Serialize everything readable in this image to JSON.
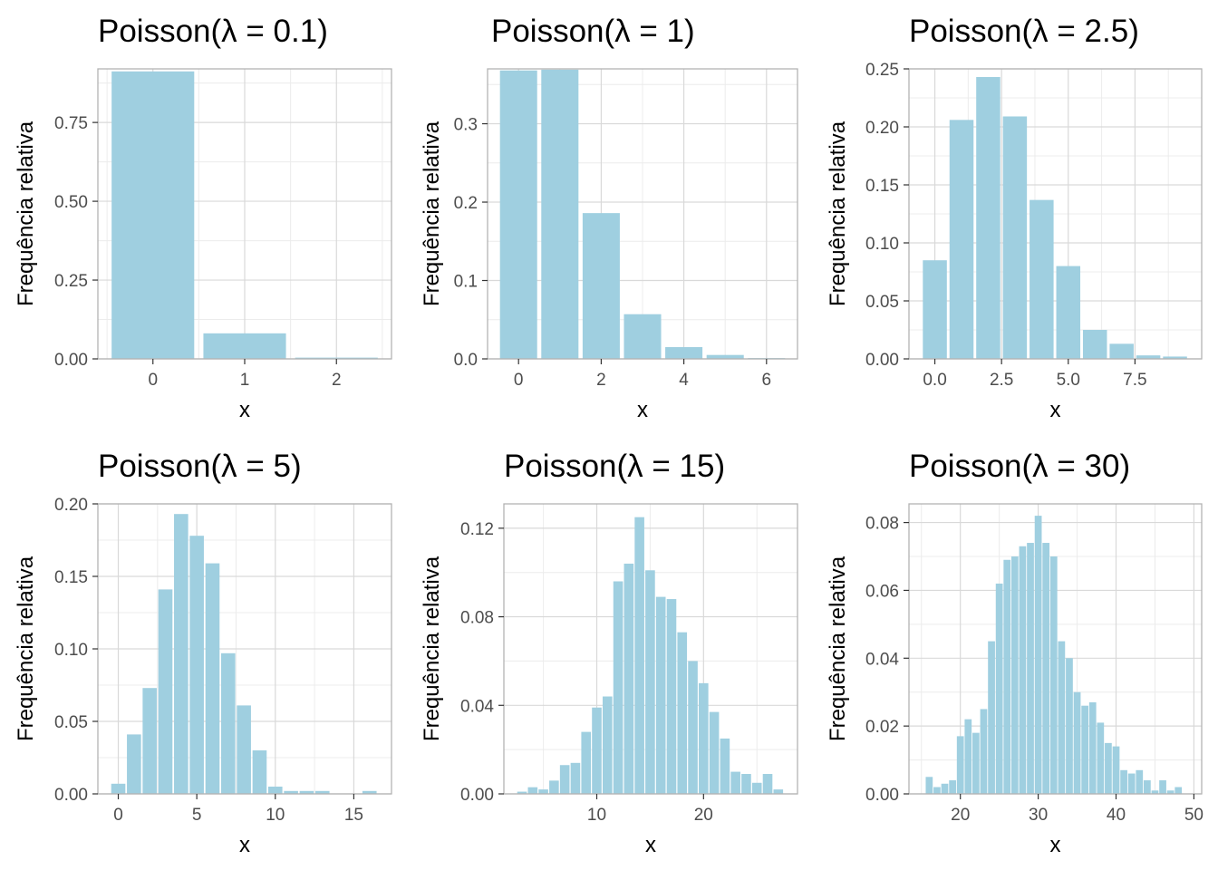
{
  "y_axis_label": "Frequência relativa",
  "x_axis_label": "x",
  "colors": {
    "bar": "#9fcfe0",
    "grid_major": "#d9d9d9",
    "grid_minor": "#ececec",
    "panel_border": "#b3b3b3",
    "tick_text": "#4d4d4d"
  },
  "chart_data": [
    {
      "type": "bar",
      "title": "Poisson(λ = 0.1)",
      "xlabel": "x",
      "ylabel": "Frequência relativa",
      "xlim": [
        -0.6,
        2.6
      ],
      "ylim": [
        0,
        0.92
      ],
      "x_ticks": [
        0,
        1,
        2
      ],
      "x_tick_labels": [
        "0",
        "1",
        "2"
      ],
      "y_ticks": [
        0,
        0.25,
        0.5,
        0.75
      ],
      "y_tick_labels": [
        "0.00",
        "0.25",
        "0.50",
        "0.75"
      ],
      "x": [
        0,
        1,
        2
      ],
      "values": [
        0.912,
        0.081,
        0.004
      ]
    },
    {
      "type": "bar",
      "title": "Poisson(λ = 1)",
      "xlabel": "x",
      "ylabel": "Frequência relativa",
      "xlim": [
        -0.75,
        6.75
      ],
      "ylim": [
        0,
        0.37
      ],
      "x_ticks": [
        0,
        2,
        4,
        6
      ],
      "x_tick_labels": [
        "0",
        "2",
        "4",
        "6"
      ],
      "y_ticks": [
        0,
        0.1,
        0.2,
        0.3
      ],
      "y_tick_labels": [
        "0.0",
        "0.1",
        "0.2",
        "0.3"
      ],
      "x": [
        0,
        1,
        2,
        3,
        4,
        5,
        6
      ],
      "values": [
        0.368,
        0.369,
        0.186,
        0.057,
        0.015,
        0.005,
        0.001
      ]
    },
    {
      "type": "bar",
      "title": "Poisson(λ = 2.5)",
      "xlabel": "x",
      "ylabel": "Frequência relativa",
      "xlim": [
        -0.97,
        10.0
      ],
      "ylim": [
        0,
        0.25
      ],
      "x_ticks": [
        0,
        2.5,
        5,
        7.5
      ],
      "x_tick_labels": [
        "0.0",
        "2.5",
        "5.0",
        "7.5"
      ],
      "y_ticks": [
        0,
        0.05,
        0.1,
        0.15,
        0.2,
        0.25
      ],
      "y_tick_labels": [
        "0.00",
        "0.05",
        "0.10",
        "0.15",
        "0.20",
        "0.25"
      ],
      "x": [
        0,
        1,
        2,
        3,
        4,
        5,
        6,
        7,
        8,
        9
      ],
      "values": [
        0.085,
        0.206,
        0.243,
        0.209,
        0.137,
        0.08,
        0.025,
        0.013,
        0.003,
        0.002
      ]
    },
    {
      "type": "bar",
      "title": "Poisson(λ = 5)",
      "xlabel": "x",
      "ylabel": "Frequência relativa",
      "xlim": [
        -1.3,
        17.4
      ],
      "ylim": [
        0,
        0.2
      ],
      "x_ticks": [
        0,
        5,
        10,
        15
      ],
      "x_tick_labels": [
        "0",
        "5",
        "10",
        "15"
      ],
      "y_ticks": [
        0,
        0.05,
        0.1,
        0.15,
        0.2
      ],
      "y_tick_labels": [
        "0.00",
        "0.05",
        "0.10",
        "0.15",
        "0.20"
      ],
      "x": [
        0,
        1,
        2,
        3,
        4,
        5,
        6,
        7,
        8,
        9,
        10,
        11,
        12,
        13,
        14,
        15,
        16
      ],
      "values": [
        0.007,
        0.041,
        0.073,
        0.141,
        0.193,
        0.178,
        0.159,
        0.097,
        0.061,
        0.03,
        0.005,
        0.002,
        0.002,
        0.002,
        0.0,
        0.0,
        0.002
      ]
    },
    {
      "type": "bar",
      "title": "Poisson(λ = 15)",
      "xlabel": "x",
      "ylabel": "Frequência relativa",
      "xlim": [
        1.3,
        28.8
      ],
      "ylim": [
        0,
        0.131
      ],
      "x_ticks": [
        10,
        20
      ],
      "x_tick_labels": [
        "10",
        "20"
      ],
      "y_ticks": [
        0,
        0.04,
        0.08,
        0.12
      ],
      "y_tick_labels": [
        "0.00",
        "0.04",
        "0.08",
        "0.12"
      ],
      "x": [
        3,
        4,
        5,
        6,
        7,
        8,
        9,
        10,
        11,
        12,
        13,
        14,
        15,
        16,
        17,
        18,
        19,
        20,
        21,
        22,
        23,
        24,
        25,
        26,
        27
      ],
      "values": [
        0.001,
        0.003,
        0.002,
        0.006,
        0.013,
        0.014,
        0.028,
        0.039,
        0.044,
        0.096,
        0.104,
        0.125,
        0.101,
        0.089,
        0.088,
        0.073,
        0.06,
        0.05,
        0.037,
        0.025,
        0.01,
        0.009,
        0.005,
        0.009,
        0.002
      ]
    },
    {
      "type": "bar",
      "title": "Poisson(λ = 30)",
      "xlabel": "x",
      "ylabel": "Frequência relativa",
      "xlim": [
        13.4,
        51.0
      ],
      "ylim": [
        0,
        0.0855
      ],
      "x_ticks": [
        20,
        30,
        40,
        50
      ],
      "x_tick_labels": [
        "20",
        "30",
        "40",
        "50"
      ],
      "y_ticks": [
        0,
        0.02,
        0.04,
        0.06,
        0.08
      ],
      "y_tick_labels": [
        "0.00",
        "0.02",
        "0.04",
        "0.06",
        "0.08"
      ],
      "x": [
        16,
        17,
        18,
        19,
        20,
        21,
        22,
        23,
        24,
        25,
        26,
        27,
        28,
        29,
        30,
        31,
        32,
        33,
        34,
        35,
        36,
        37,
        38,
        39,
        40,
        41,
        42,
        43,
        44,
        45,
        46,
        47,
        48,
        49
      ],
      "values": [
        0.005,
        0.002,
        0.003,
        0.004,
        0.017,
        0.022,
        0.018,
        0.025,
        0.045,
        0.062,
        0.069,
        0.07,
        0.073,
        0.074,
        0.082,
        0.074,
        0.07,
        0.045,
        0.04,
        0.03,
        0.026,
        0.027,
        0.021,
        0.015,
        0.014,
        0.007,
        0.006,
        0.007,
        0.004,
        0.001,
        0.004,
        0.001,
        0.002,
        0.0
      ]
    }
  ]
}
